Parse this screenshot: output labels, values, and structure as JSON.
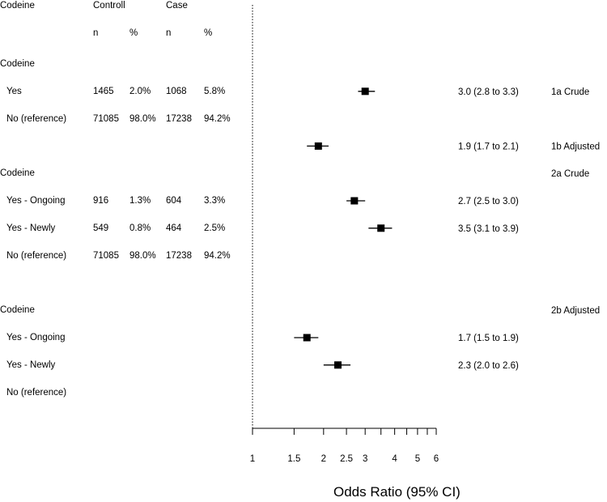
{
  "headers": {
    "col_variable": "Codeine",
    "col_control": "Controll",
    "col_case": "Case",
    "sub_n_control": "n",
    "sub_pct_control": "%",
    "sub_n_case": "n",
    "sub_pct_case": "%"
  },
  "table_rows": [
    {
      "label": "Codeine",
      "n1": "",
      "p1": "",
      "n2": "",
      "p2": ""
    },
    {
      "label": "Yes",
      "n1": "1465",
      "p1": "2.0%",
      "n2": "1068",
      "p2": "5.8%"
    },
    {
      "label": "No (reference)",
      "n1": "71085",
      "p1": "98.0%",
      "n2": "17238",
      "p2": "94.2%"
    },
    {
      "label": "",
      "n1": "",
      "p1": "",
      "n2": "",
      "p2": ""
    },
    {
      "label": "Codeine",
      "n1": "",
      "p1": "",
      "n2": "",
      "p2": ""
    },
    {
      "label": "Yes - Ongoing",
      "n1": "916",
      "p1": "1.3%",
      "n2": "604",
      "p2": "3.3%"
    },
    {
      "label": "Yes - Newly",
      "n1": "549",
      "p1": "0.8%",
      "n2": "464",
      "p2": "2.5%"
    },
    {
      "label": "No (reference)",
      "n1": "71085",
      "p1": "98.0%",
      "n2": "17238",
      "p2": "94.2%"
    },
    {
      "label": "",
      "n1": "",
      "p1": "",
      "n2": "",
      "p2": ""
    },
    {
      "label": "Codeine",
      "n1": "",
      "p1": "",
      "n2": "",
      "p2": ""
    },
    {
      "label": "Yes - Ongoing",
      "n1": "",
      "p1": "",
      "n2": "",
      "p2": ""
    },
    {
      "label": "Yes - Newly",
      "n1": "",
      "p1": "",
      "n2": "",
      "p2": ""
    },
    {
      "label": "No (reference)",
      "n1": "",
      "p1": "",
      "n2": "",
      "p2": ""
    }
  ],
  "chart_data": {
    "type": "forest",
    "xlabel": "Odds Ratio (95% CI)",
    "xscale": "log",
    "xlim": [
      1,
      6
    ],
    "ticks": [
      1,
      1.5,
      2,
      2.5,
      3,
      4,
      5,
      6
    ],
    "tick_labels": [
      "1",
      "1.5",
      "2",
      "2.5",
      "3",
      "4",
      "5",
      "6"
    ],
    "minor_ticks": [
      3.5,
      4.5,
      5.5
    ],
    "reference_line": 1,
    "points": [
      {
        "row": 1,
        "or": 3.0,
        "lo": 2.8,
        "hi": 3.3,
        "text": "3.0 (2.8 to 3.3)",
        "model": "1a Crude"
      },
      {
        "row": 3,
        "or": 1.9,
        "lo": 1.7,
        "hi": 2.1,
        "text": "1.9 (1.7 to 2.1)",
        "model": "1b Adjusted"
      },
      {
        "row": 5,
        "or": 2.7,
        "lo": 2.5,
        "hi": 3.0,
        "text": "2.7 (2.5 to 3.0)",
        "model": ""
      },
      {
        "row": 6,
        "or": 3.5,
        "lo": 3.1,
        "hi": 3.9,
        "text": "3.5 (3.1 to 3.9)",
        "model": ""
      },
      {
        "row": 10,
        "or": 1.7,
        "lo": 1.5,
        "hi": 1.9,
        "text": "1.7 (1.5 to 1.9)",
        "model": ""
      },
      {
        "row": 11,
        "or": 2.3,
        "lo": 2.0,
        "hi": 2.6,
        "text": "2.3 (2.0 to 2.6)",
        "model": ""
      }
    ],
    "group_labels": [
      {
        "row": 4,
        "text": "2a Crude"
      },
      {
        "row": 9,
        "text": "2b Adjusted"
      }
    ]
  }
}
